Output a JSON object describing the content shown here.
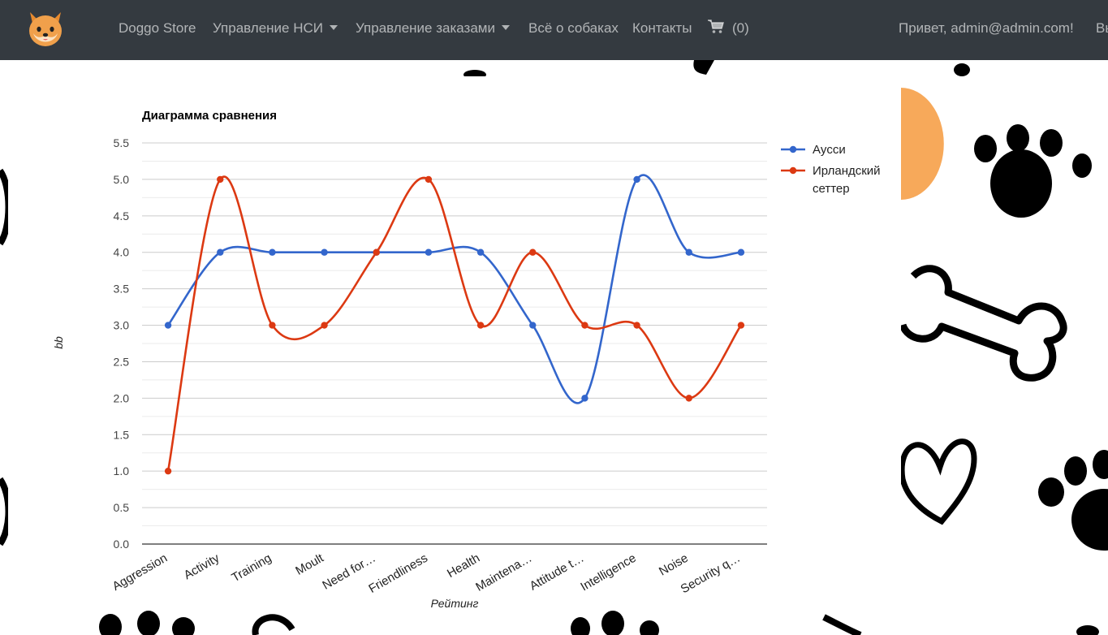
{
  "navbar": {
    "brand": "Doggo Store",
    "logo_icon": "shiba-dog-icon",
    "items": [
      {
        "label": "Управление НСИ",
        "dropdown": true
      },
      {
        "label": "Управление заказами",
        "dropdown": true
      },
      {
        "label": "Всё о собаках",
        "dropdown": false
      },
      {
        "label": "Контакты",
        "dropdown": false
      }
    ],
    "cart_icon": "cart-icon",
    "cart_count": "(0)",
    "greeting": "Привет, admin@admin.com!",
    "logout_partial": "Вы"
  },
  "colors": {
    "navbar_bg": "#343a40",
    "series_1": "#3366cc",
    "series_2": "#dc3912"
  },
  "chart_data": {
    "type": "line",
    "title": "Диаграмма сравнения",
    "xlabel": "Рейтинг",
    "ylabel": "bb",
    "categories": [
      "Aggression",
      "Activity",
      "Training",
      "Moult",
      "Need for…",
      "Friendliness",
      "Health",
      "Maintena…",
      "Attitude t…",
      "Intelligence",
      "Noise",
      "Security q…"
    ],
    "series": [
      {
        "name": "Ауcси",
        "values": [
          3,
          4,
          4,
          4,
          4,
          4,
          4,
          3,
          2,
          5,
          4,
          4
        ]
      },
      {
        "name": "Ирландский сеттер",
        "values": [
          1,
          5,
          3,
          3,
          4,
          5,
          3,
          4,
          3,
          3,
          2,
          3
        ]
      }
    ],
    "ylim": [
      0,
      5.5
    ],
    "yticks": [
      "0.0",
      "0.5",
      "1.0",
      "1.5",
      "2.0",
      "2.5",
      "3.0",
      "3.5",
      "4.0",
      "4.5",
      "5.0",
      "5.5"
    ],
    "legend": [
      {
        "lines": [
          "Ауcси"
        ]
      },
      {
        "lines": [
          "Ирландский",
          "сеттер"
        ]
      }
    ],
    "legend_position": "right",
    "grid": true,
    "curve": "smooth"
  }
}
